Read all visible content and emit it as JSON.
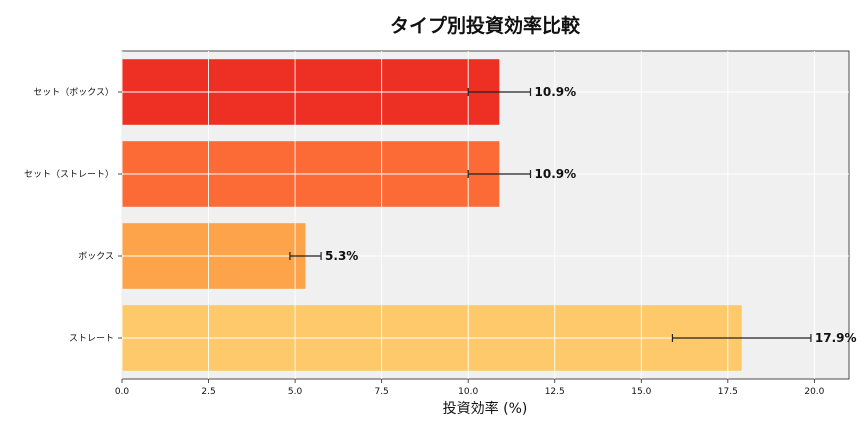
{
  "chart_data": {
    "type": "bar",
    "orientation": "horizontal",
    "title": "タイプ別投資効率比較",
    "xlabel": "投資効率 (%)",
    "ylabel": "",
    "xlim": [
      0,
      21
    ],
    "xticks": [
      "0.0",
      "2.5",
      "5.0",
      "7.5",
      "10.0",
      "12.5",
      "15.0",
      "17.5",
      "20.0"
    ],
    "xtick_values": [
      0,
      2.5,
      5,
      7.5,
      10,
      12.5,
      15,
      17.5,
      20
    ],
    "grid": true,
    "categories": [
      "ストレート",
      "ボックス",
      "セット（ストレート）",
      "セット（ボックス）"
    ],
    "values": [
      17.9,
      5.3,
      10.9,
      10.9
    ],
    "errors": [
      2.0,
      0.45,
      0.9,
      0.9
    ],
    "value_labels": [
      "17.9%",
      "5.3%",
      "10.9%",
      "10.9%"
    ],
    "colors": [
      "#fdc96a",
      "#fda44a",
      "#fc6b35",
      "#ee3024"
    ]
  }
}
